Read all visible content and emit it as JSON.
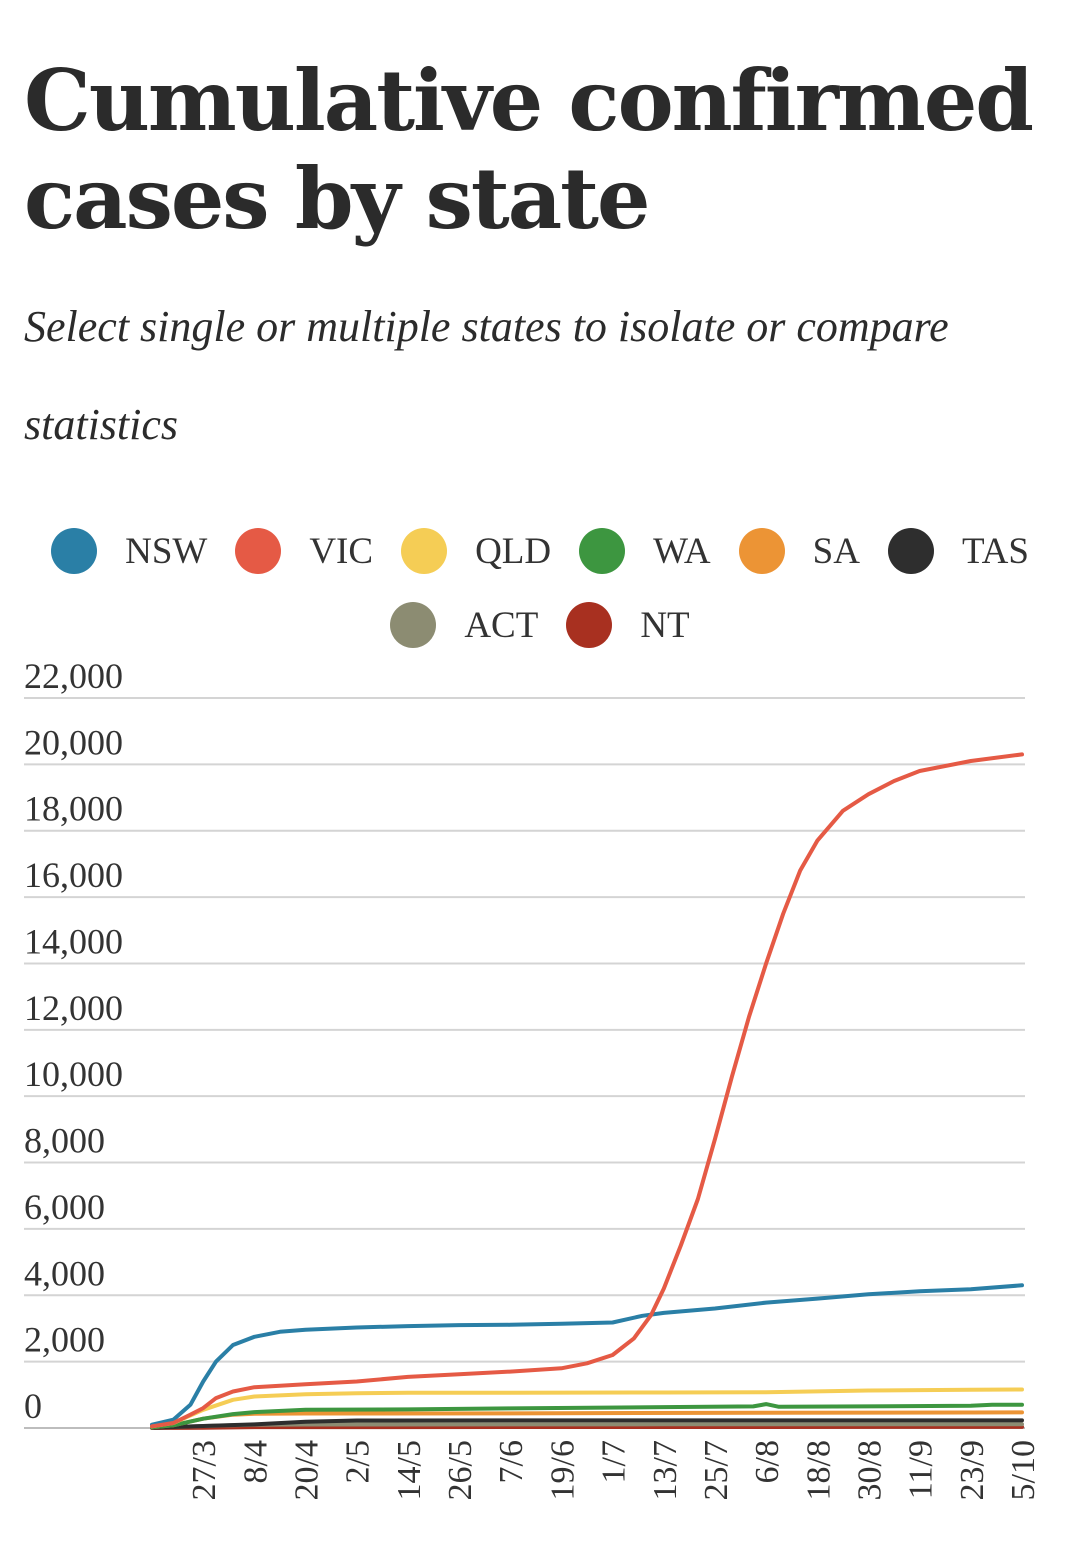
{
  "title_line1": "Cumulative confirmed",
  "title_line2": "cases by state",
  "subtitle": "Select single or multiple states to isolate or compare statistics",
  "chart_data": {
    "type": "line",
    "title": "Cumulative confirmed cases by state",
    "ylim": [
      0,
      22000
    ],
    "yticks": [
      0,
      2000,
      4000,
      6000,
      8000,
      10000,
      12000,
      14000,
      16000,
      18000,
      20000,
      22000
    ],
    "ytick_labels": [
      "0",
      "2,000",
      "4,000",
      "6,000",
      "8,000",
      "10,000",
      "12,000",
      "14,000",
      "16,000",
      "18,000",
      "20,000",
      "22,000"
    ],
    "grid": true,
    "legend_position": "top-center",
    "x_range": [
      "2020-03-15",
      "2020-10-05"
    ],
    "xtick_labels": [
      "27/3",
      "8/4",
      "20/4",
      "2/5",
      "14/5",
      "26/5",
      "7/6",
      "19/6",
      "1/7",
      "13/7",
      "25/7",
      "6/8",
      "18/8",
      "30/8",
      "11/9",
      "23/9",
      "5/10"
    ],
    "xtick_dates": [
      "2020-03-27",
      "2020-04-08",
      "2020-04-20",
      "2020-05-02",
      "2020-05-14",
      "2020-05-26",
      "2020-06-07",
      "2020-06-19",
      "2020-07-01",
      "2020-07-13",
      "2020-07-25",
      "2020-08-06",
      "2020-08-18",
      "2020-08-30",
      "2020-09-11",
      "2020-09-23",
      "2020-10-05"
    ],
    "series": [
      {
        "name": "NSW",
        "color": "#2a7fa6",
        "points": [
          [
            "2020-03-15",
            100
          ],
          [
            "2020-03-20",
            250
          ],
          [
            "2020-03-24",
            700
          ],
          [
            "2020-03-27",
            1400
          ],
          [
            "2020-03-30",
            2000
          ],
          [
            "2020-04-03",
            2500
          ],
          [
            "2020-04-08",
            2750
          ],
          [
            "2020-04-14",
            2900
          ],
          [
            "2020-04-20",
            2960
          ],
          [
            "2020-05-02",
            3030
          ],
          [
            "2020-05-14",
            3070
          ],
          [
            "2020-05-26",
            3100
          ],
          [
            "2020-06-07",
            3110
          ],
          [
            "2020-06-19",
            3140
          ],
          [
            "2020-07-01",
            3180
          ],
          [
            "2020-07-08",
            3380
          ],
          [
            "2020-07-13",
            3470
          ],
          [
            "2020-07-25",
            3600
          ],
          [
            "2020-08-06",
            3780
          ],
          [
            "2020-08-18",
            3900
          ],
          [
            "2020-08-30",
            4030
          ],
          [
            "2020-09-11",
            4120
          ],
          [
            "2020-09-23",
            4180
          ],
          [
            "2020-10-05",
            4300
          ]
        ]
      },
      {
        "name": "VIC",
        "color": "#e55a45",
        "points": [
          [
            "2020-03-15",
            50
          ],
          [
            "2020-03-20",
            150
          ],
          [
            "2020-03-24",
            400
          ],
          [
            "2020-03-27",
            600
          ],
          [
            "2020-03-30",
            900
          ],
          [
            "2020-04-03",
            1100
          ],
          [
            "2020-04-08",
            1230
          ],
          [
            "2020-04-20",
            1320
          ],
          [
            "2020-05-02",
            1400
          ],
          [
            "2020-05-14",
            1540
          ],
          [
            "2020-05-26",
            1620
          ],
          [
            "2020-06-07",
            1700
          ],
          [
            "2020-06-19",
            1800
          ],
          [
            "2020-06-25",
            1950
          ],
          [
            "2020-07-01",
            2200
          ],
          [
            "2020-07-06",
            2700
          ],
          [
            "2020-07-10",
            3400
          ],
          [
            "2020-07-13",
            4200
          ],
          [
            "2020-07-17",
            5500
          ],
          [
            "2020-07-21",
            6900
          ],
          [
            "2020-07-25",
            8700
          ],
          [
            "2020-07-29",
            10600
          ],
          [
            "2020-08-02",
            12400
          ],
          [
            "2020-08-06",
            14000
          ],
          [
            "2020-08-10",
            15500
          ],
          [
            "2020-08-14",
            16800
          ],
          [
            "2020-08-18",
            17700
          ],
          [
            "2020-08-24",
            18600
          ],
          [
            "2020-08-30",
            19100
          ],
          [
            "2020-09-05",
            19500
          ],
          [
            "2020-09-11",
            19800
          ],
          [
            "2020-09-23",
            20100
          ],
          [
            "2020-10-05",
            20300
          ]
        ]
      },
      {
        "name": "QLD",
        "color": "#f5cd55",
        "points": [
          [
            "2020-03-15",
            50
          ],
          [
            "2020-03-20",
            150
          ],
          [
            "2020-03-27",
            550
          ],
          [
            "2020-04-03",
            850
          ],
          [
            "2020-04-08",
            950
          ],
          [
            "2020-04-20",
            1020
          ],
          [
            "2020-05-02",
            1050
          ],
          [
            "2020-05-14",
            1060
          ],
          [
            "2020-06-07",
            1065
          ],
          [
            "2020-07-13",
            1070
          ],
          [
            "2020-08-06",
            1080
          ],
          [
            "2020-08-30",
            1130
          ],
          [
            "2020-09-23",
            1150
          ],
          [
            "2020-10-05",
            1160
          ]
        ]
      },
      {
        "name": "WA",
        "color": "#3d9640",
        "points": [
          [
            "2020-03-15",
            20
          ],
          [
            "2020-03-20",
            80
          ],
          [
            "2020-03-27",
            280
          ],
          [
            "2020-04-03",
            420
          ],
          [
            "2020-04-08",
            480
          ],
          [
            "2020-04-20",
            550
          ],
          [
            "2020-05-14",
            560
          ],
          [
            "2020-06-07",
            590
          ],
          [
            "2020-07-13",
            630
          ],
          [
            "2020-08-03",
            650
          ],
          [
            "2020-08-06",
            720
          ],
          [
            "2020-08-09",
            640
          ],
          [
            "2020-09-23",
            670
          ],
          [
            "2020-09-28",
            700
          ],
          [
            "2020-10-05",
            700
          ]
        ]
      },
      {
        "name": "SA",
        "color": "#ec9435",
        "points": [
          [
            "2020-03-15",
            20
          ],
          [
            "2020-03-20",
            80
          ],
          [
            "2020-03-27",
            280
          ],
          [
            "2020-04-03",
            400
          ],
          [
            "2020-04-08",
            430
          ],
          [
            "2020-04-20",
            438
          ],
          [
            "2020-06-07",
            440
          ],
          [
            "2020-08-06",
            460
          ],
          [
            "2020-09-23",
            468
          ],
          [
            "2020-10-05",
            470
          ]
        ]
      },
      {
        "name": "TAS",
        "color": "#2e2e2e",
        "points": [
          [
            "2020-03-15",
            10
          ],
          [
            "2020-03-27",
            60
          ],
          [
            "2020-04-08",
            110
          ],
          [
            "2020-04-20",
            190
          ],
          [
            "2020-05-02",
            225
          ],
          [
            "2020-06-07",
            228
          ],
          [
            "2020-07-13",
            229
          ],
          [
            "2020-10-05",
            230
          ]
        ]
      },
      {
        "name": "ACT",
        "color": "#8c8c72",
        "points": [
          [
            "2020-03-15",
            5
          ],
          [
            "2020-03-27",
            60
          ],
          [
            "2020-04-08",
            100
          ],
          [
            "2020-04-20",
            106
          ],
          [
            "2020-07-13",
            113
          ],
          [
            "2020-10-05",
            113
          ]
        ]
      },
      {
        "name": "NT",
        "color": "#a83020",
        "points": [
          [
            "2020-03-15",
            0
          ],
          [
            "2020-03-27",
            10
          ],
          [
            "2020-04-08",
            27
          ],
          [
            "2020-04-20",
            28
          ],
          [
            "2020-07-13",
            31
          ],
          [
            "2020-10-05",
            33
          ]
        ]
      }
    ]
  }
}
